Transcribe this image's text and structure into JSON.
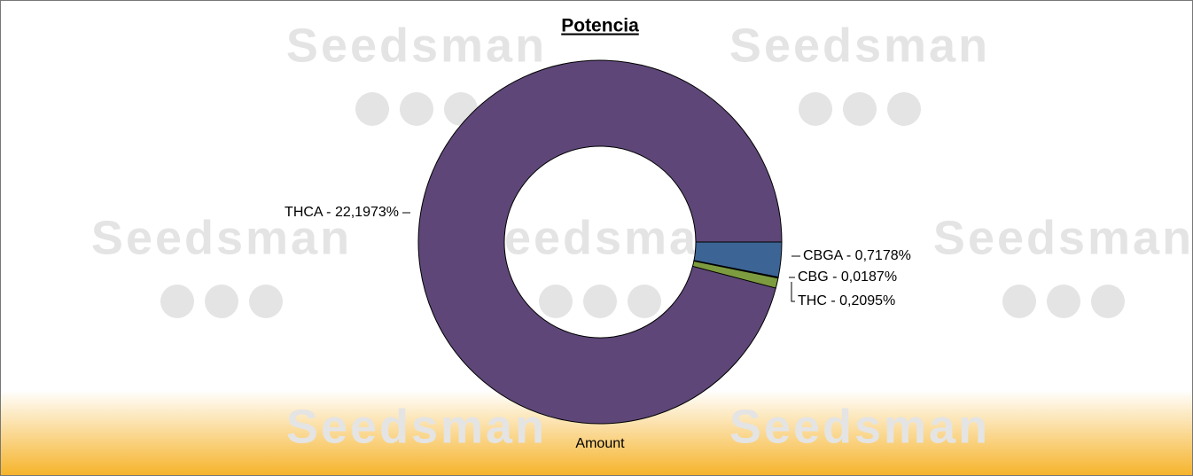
{
  "chart_data": {
    "type": "donut",
    "title": "Potencia",
    "label": "Amount",
    "watermark": "Seedsman",
    "values": [
      0.7178,
      0.0187,
      0.2095,
      22.1973
    ],
    "value_labels": [
      "CBGA - 0,7178%",
      "CBG - 0,0187%",
      "THC - 0,2095%",
      "THCA - 22,1973%"
    ],
    "colors": [
      "#3c6595",
      "#9bbb59",
      "#7d9b3f",
      "#5e4778"
    ]
  }
}
